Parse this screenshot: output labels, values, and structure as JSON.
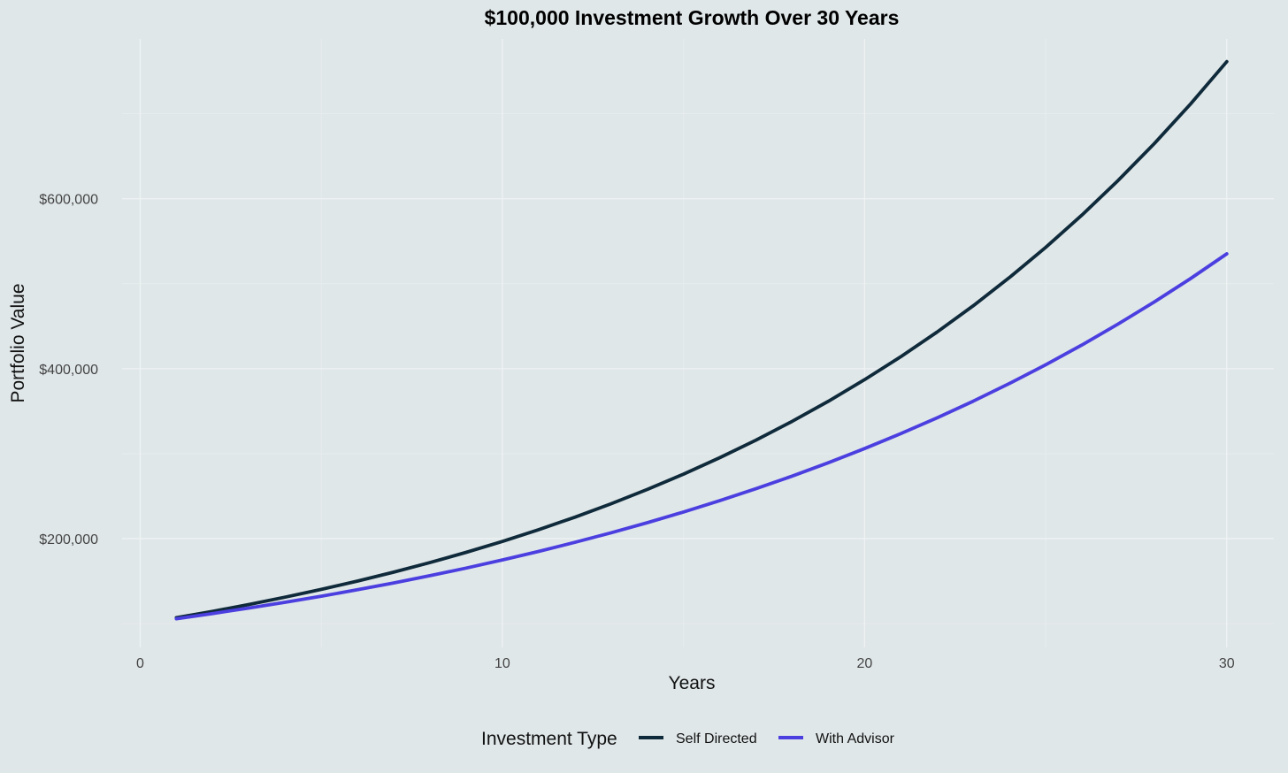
{
  "chart_data": {
    "type": "line",
    "title": "$100,000 Investment Growth Over 30 Years",
    "xlabel": "Years",
    "ylabel": "Portfolio Value",
    "xlim": [
      -0.5,
      31.3
    ],
    "ylim": [
      72000,
      788000
    ],
    "x_ticks": [
      0,
      10,
      20,
      30
    ],
    "x_tick_labels": [
      "0",
      "10",
      "20",
      "30"
    ],
    "y_ticks": [
      200000,
      400000,
      600000
    ],
    "y_tick_labels": [
      "$200,000",
      "$400,000",
      "$600,000"
    ],
    "grid": true,
    "legend": {
      "title": "Investment Type",
      "position": "bottom"
    },
    "x": [
      1,
      2,
      3,
      4,
      5,
      6,
      7,
      8,
      9,
      10,
      11,
      12,
      13,
      14,
      15,
      16,
      17,
      18,
      19,
      20,
      21,
      22,
      23,
      24,
      25,
      26,
      27,
      28,
      29,
      30
    ],
    "series": [
      {
        "name": "Self Directed",
        "color": "#0f2a3a",
        "values": [
          107000,
          114490,
          122504,
          131080,
          140255,
          150073,
          160578,
          171819,
          183846,
          196715,
          210485,
          225219,
          240985,
          257853,
          275903,
          295216,
          315882,
          337993,
          361653,
          386968,
          414056,
          443040,
          474053,
          507237,
          542743,
          580735,
          621387,
          664884,
          711426,
          761226
        ]
      },
      {
        "name": "With Advisor",
        "color": "#4b3fe0",
        "values": [
          105750,
          111831,
          118261,
          125061,
          132252,
          139856,
          147898,
          156402,
          165396,
          174906,
          184963,
          195598,
          206845,
          218739,
          231316,
          244617,
          258682,
          273557,
          289286,
          305919,
          323510,
          342110,
          361781,
          382584,
          404582,
          427845,
          452446,
          478461,
          505972,
          535066
        ]
      }
    ]
  }
}
